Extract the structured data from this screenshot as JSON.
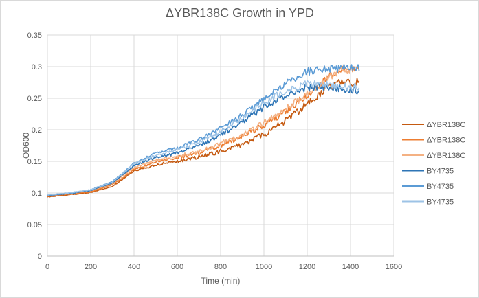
{
  "chart_data": {
    "type": "line",
    "title": "ΔYBR138C Growth in YPD",
    "xlabel": "Time (min)",
    "ylabel": "OD600",
    "xlim": [
      0,
      1600
    ],
    "ylim": [
      0,
      0.35
    ],
    "x_ticks": [
      "0",
      "200",
      "400",
      "600",
      "800",
      "1000",
      "1200",
      "1400",
      "1600"
    ],
    "y_ticks": [
      "0",
      "0.05",
      "0.1",
      "0.15",
      "0.2",
      "0.25",
      "0.3",
      "0.35"
    ],
    "grid": true,
    "legend_position": "right",
    "x": [
      0,
      100,
      200,
      300,
      400,
      500,
      600,
      700,
      800,
      900,
      1000,
      1100,
      1200,
      1300,
      1350,
      1400,
      1440
    ],
    "series": [
      {
        "name": "ΔYBR138C",
        "color": "#c55a11",
        "values": [
          0.094,
          0.097,
          0.101,
          0.11,
          0.135,
          0.144,
          0.15,
          0.157,
          0.166,
          0.177,
          0.193,
          0.215,
          0.24,
          0.268,
          0.276,
          0.274,
          0.277
        ]
      },
      {
        "name": "ΔYBR138C",
        "color": "#ed7d31",
        "values": [
          0.095,
          0.098,
          0.102,
          0.113,
          0.137,
          0.149,
          0.156,
          0.163,
          0.175,
          0.19,
          0.207,
          0.229,
          0.255,
          0.286,
          0.296,
          0.297,
          0.298
        ]
      },
      {
        "name": "ΔYBR138C",
        "color": "#f4b183",
        "values": [
          0.096,
          0.099,
          0.104,
          0.115,
          0.14,
          0.152,
          0.158,
          0.166,
          0.178,
          0.193,
          0.211,
          0.232,
          0.257,
          0.282,
          0.293,
          0.295,
          0.296
        ]
      },
      {
        "name": "BY4735",
        "color": "#2e75b6",
        "values": [
          0.096,
          0.099,
          0.104,
          0.116,
          0.143,
          0.156,
          0.163,
          0.175,
          0.192,
          0.212,
          0.236,
          0.255,
          0.267,
          0.268,
          0.265,
          0.263,
          0.262
        ]
      },
      {
        "name": "BY4735",
        "color": "#5b9bd5",
        "values": [
          0.096,
          0.1,
          0.105,
          0.118,
          0.147,
          0.163,
          0.171,
          0.184,
          0.202,
          0.223,
          0.25,
          0.273,
          0.292,
          0.296,
          0.297,
          0.298,
          0.298
        ]
      },
      {
        "name": "BY4735",
        "color": "#9dc3e6",
        "values": [
          0.097,
          0.1,
          0.105,
          0.117,
          0.146,
          0.16,
          0.168,
          0.18,
          0.197,
          0.218,
          0.243,
          0.262,
          0.273,
          0.271,
          0.27,
          0.268,
          0.267
        ]
      }
    ]
  }
}
